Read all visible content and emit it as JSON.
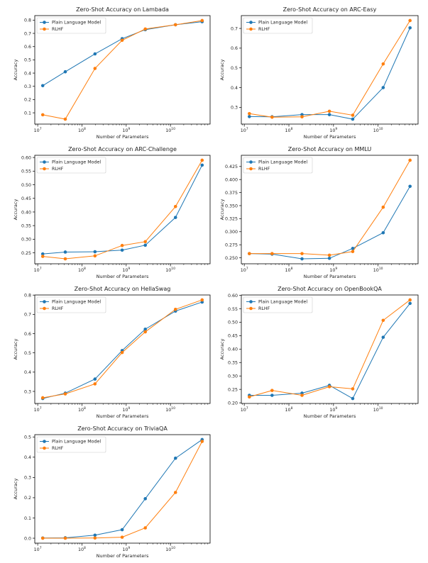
{
  "colors": {
    "plain": "#1f77b4",
    "rlhf": "#ff7f0e"
  },
  "chart_data": [
    {
      "type": "line",
      "title": "Zero-Shot Accuracy on Lambada",
      "xlabel": "Number of Parameters",
      "ylabel": "Accuracy",
      "xscale": "log",
      "grid": false,
      "legend": "top-left",
      "x": [
        13000000.0,
        42000000.0,
        197000000.0,
        810000000.0,
        2700000000.0,
        13000000000.0,
        52000000000.0
      ],
      "xticks": [
        {
          "base": "10",
          "exp": "7"
        },
        {
          "base": "10",
          "exp": "8"
        },
        {
          "base": "10",
          "exp": "9"
        },
        {
          "base": "10",
          "exp": "10"
        }
      ],
      "yticks": [
        "0.1",
        "0.2",
        "0.3",
        "0.4",
        "0.5",
        "0.6",
        "0.7",
        "0.8"
      ],
      "series": [
        {
          "name": "Plain Language Model",
          "values": [
            0.305,
            0.41,
            0.545,
            0.66,
            0.728,
            0.765,
            0.788
          ]
        },
        {
          "name": "RLHF",
          "values": [
            0.085,
            0.052,
            0.435,
            0.648,
            0.733,
            0.765,
            0.797
          ]
        }
      ]
    },
    {
      "type": "line",
      "title": "Zero-Shot Accuracy on ARC-Easy",
      "xlabel": "Number of Parameters",
      "ylabel": "Accuracy",
      "xscale": "log",
      "grid": false,
      "legend": "top-left",
      "x": [
        13000000.0,
        42000000.0,
        197000000.0,
        810000000.0,
        2700000000.0,
        13000000000.0,
        52000000000.0
      ],
      "xticks": [
        {
          "base": "10",
          "exp": "7"
        },
        {
          "base": "10",
          "exp": "8"
        },
        {
          "base": "10",
          "exp": "9"
        },
        {
          "base": "10",
          "exp": "10"
        }
      ],
      "yticks": [
        "0.3",
        "0.4",
        "0.5",
        "0.6",
        "0.7"
      ],
      "series": [
        {
          "name": "Plain Language Model",
          "values": [
            0.253,
            0.252,
            0.263,
            0.263,
            0.24,
            0.4,
            0.703
          ]
        },
        {
          "name": "RLHF",
          "values": [
            0.268,
            0.25,
            0.252,
            0.28,
            0.26,
            0.52,
            0.74
          ]
        }
      ]
    },
    {
      "type": "line",
      "title": "Zero-Shot Accuracy on ARC-Challenge",
      "xlabel": "Number of Parameters",
      "ylabel": "Accuracy",
      "xscale": "log",
      "grid": false,
      "legend": "top-left",
      "x": [
        13000000.0,
        42000000.0,
        197000000.0,
        810000000.0,
        2700000000.0,
        13000000000.0,
        52000000000.0
      ],
      "xticks": [
        {
          "base": "10",
          "exp": "7"
        },
        {
          "base": "10",
          "exp": "8"
        },
        {
          "base": "10",
          "exp": "9"
        },
        {
          "base": "10",
          "exp": "10"
        }
      ],
      "yticks": [
        "0.25",
        "0.30",
        "0.35",
        "0.40",
        "0.45",
        "0.50",
        "0.55",
        "0.60"
      ],
      "series": [
        {
          "name": "Plain Language Model",
          "values": [
            0.246,
            0.253,
            0.254,
            0.26,
            0.278,
            0.38,
            0.572
          ]
        },
        {
          "name": "RLHF",
          "values": [
            0.237,
            0.228,
            0.239,
            0.277,
            0.291,
            0.42,
            0.59
          ]
        }
      ]
    },
    {
      "type": "line",
      "title": "Zero-Shot Accuracy on MMLU",
      "xlabel": "Number of Parameters",
      "ylabel": "Accuracy",
      "xscale": "log",
      "grid": false,
      "legend": "top-left",
      "x": [
        13000000.0,
        42000000.0,
        197000000.0,
        810000000.0,
        2700000000.0,
        13000000000.0,
        52000000000.0
      ],
      "xticks": [
        {
          "base": "10",
          "exp": "7"
        },
        {
          "base": "10",
          "exp": "8"
        },
        {
          "base": "10",
          "exp": "9"
        },
        {
          "base": "10",
          "exp": "10"
        }
      ],
      "yticks": [
        "0.250",
        "0.275",
        "0.300",
        "0.325",
        "0.350",
        "0.375",
        "0.400",
        "0.425"
      ],
      "series": [
        {
          "name": "Plain Language Model",
          "values": [
            0.258,
            0.257,
            0.248,
            0.249,
            0.268,
            0.298,
            0.387
          ]
        },
        {
          "name": "RLHF",
          "values": [
            0.258,
            0.258,
            0.258,
            0.255,
            0.262,
            0.347,
            0.437
          ]
        }
      ]
    },
    {
      "type": "line",
      "title": "Zero-Shot Accuracy on HellaSwag",
      "xlabel": "Number of Parameters",
      "ylabel": "Accuracy",
      "xscale": "log",
      "grid": false,
      "legend": "top-left",
      "x": [
        13000000.0,
        42000000.0,
        197000000.0,
        810000000.0,
        2700000000.0,
        13000000000.0,
        52000000000.0
      ],
      "xticks": [
        {
          "base": "10",
          "exp": "7"
        },
        {
          "base": "10",
          "exp": "8"
        },
        {
          "base": "10",
          "exp": "9"
        },
        {
          "base": "10",
          "exp": "10"
        }
      ],
      "yticks": [
        "0.3",
        "0.4",
        "0.5",
        "0.6",
        "0.7",
        "0.8"
      ],
      "series": [
        {
          "name": "Plain Language Model",
          "values": [
            0.263,
            0.291,
            0.364,
            0.512,
            0.623,
            0.717,
            0.764
          ]
        },
        {
          "name": "RLHF",
          "values": [
            0.267,
            0.287,
            0.339,
            0.502,
            0.609,
            0.726,
            0.775
          ]
        }
      ]
    },
    {
      "type": "line",
      "title": "Zero-Shot Accuracy on OpenBookQA",
      "xlabel": "Number of Parameters",
      "ylabel": "Accuracy",
      "xscale": "log",
      "grid": false,
      "legend": "top-left",
      "x": [
        13000000.0,
        42000000.0,
        197000000.0,
        810000000.0,
        2700000000.0,
        13000000000.0,
        52000000000.0
      ],
      "xticks": [
        {
          "base": "10",
          "exp": "7"
        },
        {
          "base": "10",
          "exp": "8"
        },
        {
          "base": "10",
          "exp": "9"
        },
        {
          "base": "10",
          "exp": "10"
        }
      ],
      "yticks": [
        "0.20",
        "0.25",
        "0.30",
        "0.35",
        "0.40",
        "0.45",
        "0.50",
        "0.55",
        "0.60"
      ],
      "series": [
        {
          "name": "Plain Language Model",
          "values": [
            0.228,
            0.228,
            0.236,
            0.265,
            0.216,
            0.444,
            0.57
          ]
        },
        {
          "name": "RLHF",
          "values": [
            0.222,
            0.246,
            0.228,
            0.26,
            0.252,
            0.507,
            0.583
          ]
        }
      ]
    },
    {
      "type": "line",
      "title": "Zero-Shot Accuracy on TriviaQA",
      "xlabel": "Number of Parameters",
      "ylabel": "Accuracy",
      "xscale": "log",
      "grid": false,
      "legend": "top-left",
      "x": [
        13000000.0,
        42000000.0,
        197000000.0,
        810000000.0,
        2700000000.0,
        13000000000.0,
        52000000000.0
      ],
      "xticks": [
        {
          "base": "10",
          "exp": "7"
        },
        {
          "base": "10",
          "exp": "8"
        },
        {
          "base": "10",
          "exp": "9"
        },
        {
          "base": "10",
          "exp": "10"
        }
      ],
      "yticks": [
        "0.0",
        "0.1",
        "0.2",
        "0.3",
        "0.4",
        "0.5"
      ],
      "series": [
        {
          "name": "Plain Language Model",
          "values": [
            0.001,
            0.002,
            0.015,
            0.042,
            0.195,
            0.395,
            0.487
          ]
        },
        {
          "name": "RLHF",
          "values": [
            0.0,
            0.0,
            0.001,
            0.005,
            0.051,
            0.226,
            0.478
          ]
        }
      ]
    }
  ]
}
